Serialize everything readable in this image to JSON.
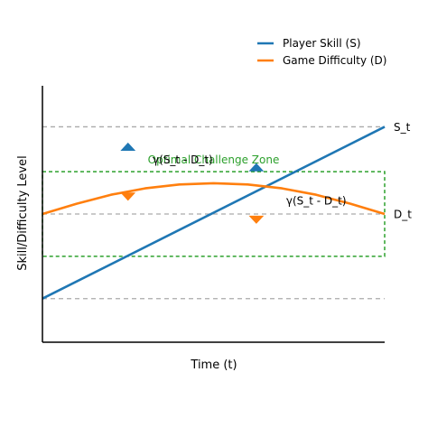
{
  "chart_data": {
    "type": "line",
    "title": "",
    "xlabel": "Time (t)",
    "ylabel": "Skill/Difficulty Level",
    "xlim": [
      0,
      10
    ],
    "ylim": [
      0,
      10
    ],
    "grid": false,
    "legend_position": "top-right",
    "series": [
      {
        "name": "Player Skill (S)",
        "color": "#1f77b4",
        "x": [
          0,
          10
        ],
        "y": [
          1.7,
          8.4
        ]
      },
      {
        "name": "Game Difficulty (D)",
        "color": "#ff7f0e",
        "x": [
          0,
          1,
          2,
          3,
          4,
          5,
          6,
          7,
          8,
          9,
          10
        ],
        "y": [
          5.0,
          5.4,
          5.75,
          6.0,
          6.15,
          6.2,
          6.15,
          6.0,
          5.75,
          5.4,
          5.0
        ]
      }
    ],
    "reference_lines": [
      {
        "y": 8.4,
        "color": "#aaaaaa"
      },
      {
        "y": 5.0,
        "color": "#aaaaaa"
      },
      {
        "y": 1.7,
        "color": "#aaaaaa"
      }
    ],
    "line_labels": [
      {
        "text": "S_t",
        "x": 10,
        "y": 8.4
      },
      {
        "text": "D_t",
        "x": 10,
        "y": 5.0
      }
    ],
    "zone": {
      "label": "Optimal Challenge Zone",
      "color": "#2ca02c",
      "x": [
        0,
        10
      ],
      "y": [
        3.35,
        6.65
      ]
    },
    "markers": [
      {
        "shape": "triangle-up",
        "color": "#1f77b4",
        "x": 2.5,
        "y": 7.6
      },
      {
        "shape": "triangle-down",
        "color": "#ff7f0e",
        "x": 2.5,
        "y": 5.7
      },
      {
        "shape": "triangle-up",
        "color": "#1f77b4",
        "x": 6.25,
        "y": 6.8
      },
      {
        "shape": "triangle-down",
        "color": "#ff7f0e",
        "x": 6.25,
        "y": 4.8
      }
    ],
    "annotations": [
      {
        "text": "γ(S_t - D_t)",
        "x": 4.1,
        "y": 7.1
      },
      {
        "text": "γ(S_t - D_t)",
        "x": 8.0,
        "y": 5.5
      }
    ]
  }
}
